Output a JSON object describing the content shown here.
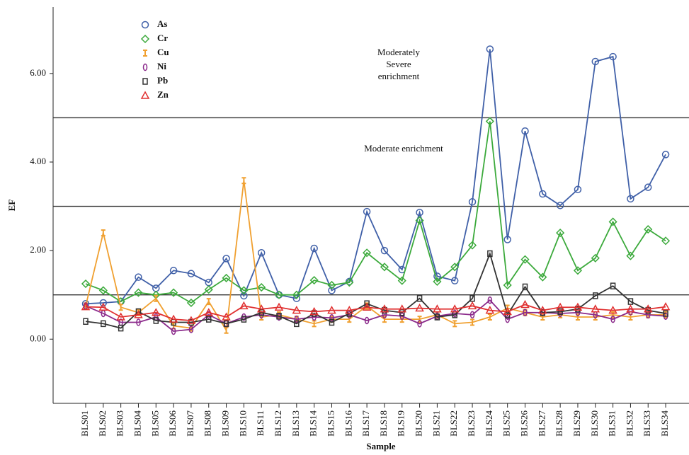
{
  "chart_data": {
    "type": "line",
    "x_label": "Sample",
    "y_label": "EF",
    "categories": [
      "BLS01",
      "BLS02",
      "BLS03",
      "BLS04",
      "BLS05",
      "BLS06",
      "BLS07",
      "BLS08",
      "BLS09",
      "BLS10",
      "BLS11",
      "BLS12",
      "BLS13",
      "BLS14",
      "BLS15",
      "BLS16",
      "BLS17",
      "BLS18",
      "BLS19",
      "BLS20",
      "BLS21",
      "BLS22",
      "BLS23",
      "BLS24",
      "BLS25",
      "BLS26",
      "BLS27",
      "BLS28",
      "BLS29",
      "BLS30",
      "BLS31",
      "BLS32",
      "BLS33",
      "BLS34"
    ],
    "series": [
      {
        "name": "As",
        "color": "#4060a8",
        "marker": "circle",
        "values": [
          0.8,
          0.82,
          0.85,
          1.4,
          1.15,
          1.55,
          1.48,
          1.28,
          1.82,
          0.98,
          1.95,
          1.0,
          0.92,
          2.05,
          1.1,
          1.3,
          2.88,
          2.0,
          1.57,
          2.86,
          1.42,
          1.32,
          3.1,
          6.55,
          2.25,
          4.7,
          3.28,
          3.02,
          3.38,
          6.27,
          6.38,
          3.17,
          3.43,
          4.17
        ]
      },
      {
        "name": "Cr",
        "color": "#3caa3c",
        "marker": "diamond",
        "values": [
          1.25,
          1.1,
          0.85,
          1.05,
          1.0,
          1.05,
          0.82,
          1.12,
          1.38,
          1.1,
          1.17,
          1.0,
          1.0,
          1.33,
          1.22,
          1.28,
          1.95,
          1.63,
          1.32,
          2.68,
          1.3,
          1.63,
          2.12,
          4.92,
          1.22,
          1.8,
          1.4,
          2.4,
          1.55,
          1.83,
          2.65,
          1.88,
          2.48,
          2.22
        ]
      },
      {
        "name": "Cu",
        "color": "#f0a030",
        "marker": "ibeam",
        "values": [
          0.75,
          2.4,
          0.72,
          0.6,
          0.92,
          0.3,
          0.25,
          0.85,
          0.2,
          3.58,
          0.5,
          0.55,
          0.45,
          0.35,
          0.45,
          0.45,
          0.75,
          0.45,
          0.45,
          0.45,
          0.55,
          0.35,
          0.38,
          0.5,
          0.7,
          0.6,
          0.5,
          0.55,
          0.5,
          0.5,
          0.55,
          0.5,
          0.55,
          0.55
        ]
      },
      {
        "name": "Ni",
        "color": "#8b2a8b",
        "marker": "ellipse",
        "values": [
          0.75,
          0.58,
          0.38,
          0.38,
          0.5,
          0.18,
          0.22,
          0.55,
          0.35,
          0.5,
          0.55,
          0.5,
          0.45,
          0.5,
          0.48,
          0.55,
          0.42,
          0.55,
          0.52,
          0.35,
          0.52,
          0.58,
          0.55,
          0.88,
          0.45,
          0.6,
          0.6,
          0.58,
          0.6,
          0.55,
          0.45,
          0.62,
          0.55,
          0.52
        ]
      },
      {
        "name": "Pb",
        "color": "#333333",
        "marker": "square",
        "values": [
          0.4,
          0.35,
          0.25,
          0.62,
          0.42,
          0.38,
          0.38,
          0.45,
          0.35,
          0.45,
          0.6,
          0.52,
          0.35,
          0.58,
          0.38,
          0.58,
          0.8,
          0.65,
          0.6,
          0.92,
          0.5,
          0.55,
          0.92,
          1.93,
          0.55,
          1.18,
          0.6,
          0.62,
          0.68,
          0.98,
          1.2,
          0.85,
          0.65,
          0.58
        ]
      },
      {
        "name": "Zn",
        "color": "#e03030",
        "marker": "triangle",
        "values": [
          0.73,
          0.72,
          0.5,
          0.55,
          0.6,
          0.45,
          0.42,
          0.6,
          0.5,
          0.75,
          0.68,
          0.72,
          0.65,
          0.62,
          0.65,
          0.65,
          0.72,
          0.68,
          0.68,
          0.7,
          0.68,
          0.68,
          0.75,
          0.65,
          0.62,
          0.78,
          0.65,
          0.72,
          0.72,
          0.68,
          0.65,
          0.68,
          0.68,
          0.73
        ]
      }
    ],
    "ylim": [
      -1.45,
      7.5
    ],
    "yticks": [
      {
        "value": 0,
        "label": "0.00"
      },
      {
        "value": 2,
        "label": "2.00"
      },
      {
        "value": 4,
        "label": "4.00"
      },
      {
        "value": 6,
        "label": "6.00"
      }
    ],
    "reference_lines": [
      1,
      3,
      5
    ],
    "annotations": [
      {
        "lines": [
          "Moderately",
          "Severe",
          "enrichment"
        ]
      },
      {
        "lines": [
          "Moderate enrichment"
        ]
      }
    ],
    "legend": "upper left"
  }
}
